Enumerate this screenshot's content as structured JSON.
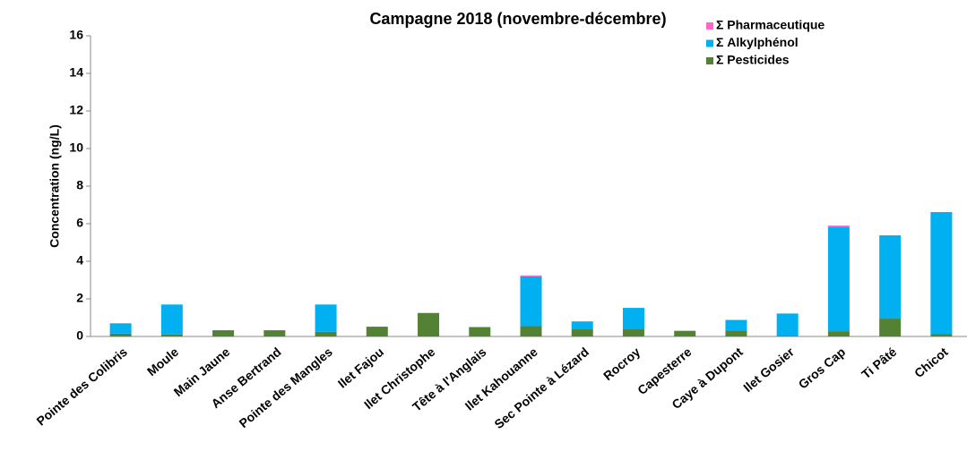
{
  "chart_data": {
    "type": "stacked_bar",
    "title": "Campagne 2018 (novembre-décembre)",
    "y_label": "Concentration (ng/L)",
    "categories": [
      "Pointe des Colibris",
      "Moule",
      "Main Jaune",
      "Anse Bertrand",
      "Pointe des Mangles",
      "Ilet Fajou",
      "Ilet Christophe",
      "Tête à l'Anglais",
      "Ilet Kahouanne",
      "Sec Pointe à Lézard",
      "Rocroy",
      "Capesterre",
      "Caye à Dupont",
      "Ilet Gosier",
      "Gros Cap",
      "Ti Pâté",
      "Chicot"
    ],
    "series": [
      {
        "name": "Σ Pharmaceutique",
        "color": "#ff66cc",
        "values": [
          0,
          0,
          0,
          0,
          0,
          0,
          0,
          0,
          0.05,
          0,
          0,
          0,
          0,
          0,
          0.07,
          0,
          0
        ]
      },
      {
        "name": "Σ Alkylphénol",
        "color": "#00b0f0",
        "values": [
          0.55,
          1.6,
          0,
          0,
          1.45,
          0,
          0,
          0,
          2.65,
          0.42,
          1.14,
          0,
          0.56,
          1.2,
          5.55,
          4.43,
          6.5
        ]
      },
      {
        "name": "Σ Pesticides",
        "color": "#548235",
        "values": [
          0.15,
          0.1,
          0.33,
          0.33,
          0.25,
          0.52,
          1.25,
          0.5,
          0.55,
          0.38,
          0.38,
          0.3,
          0.32,
          0.02,
          0.28,
          0.95,
          0.12
        ]
      }
    ],
    "ylim": [
      0,
      16
    ],
    "yticks": [
      0,
      2,
      4,
      6,
      8,
      10,
      12,
      14,
      16
    ],
    "grid": false,
    "legend": "top-right"
  }
}
